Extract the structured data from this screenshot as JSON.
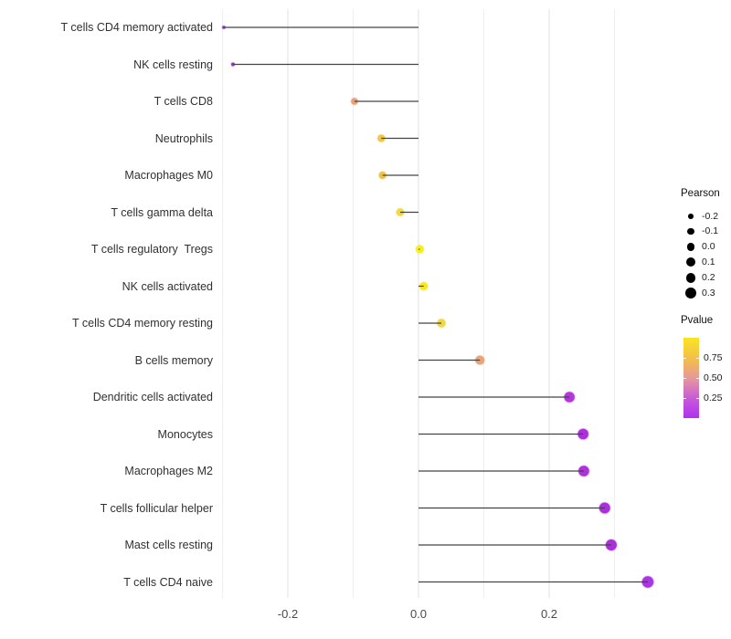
{
  "chart_data": {
    "type": "scatter",
    "subtype": "lollipop",
    "title": "",
    "xlabel": "",
    "ylabel": "",
    "xlim": [
      -0.33,
      0.38
    ],
    "grid": "vertical-only",
    "x_major_ticks": [
      {
        "label": "-0.2",
        "value": -0.2
      },
      {
        "label": "0.0",
        "value": 0.0
      },
      {
        "label": "0.2",
        "value": 0.2
      }
    ],
    "x_minor_gridlines": [
      -0.3,
      -0.1,
      0.1,
      0.3
    ],
    "points": [
      {
        "label": "T cells CD4 memory activated",
        "pearson": -0.298,
        "pvalue_est": 0.1,
        "color": "#9D2ACB"
      },
      {
        "label": "NK cells resting",
        "pearson": -0.284,
        "pvalue_est": 0.12,
        "color": "#A22DD0"
      },
      {
        "label": "T cells CD8",
        "pearson": -0.098,
        "pvalue_est": 0.65,
        "color": "#EBA078"
      },
      {
        "label": "Neutrophils",
        "pearson": -0.057,
        "pvalue_est": 0.8,
        "color": "#F0C746"
      },
      {
        "label": "Macrophages M0",
        "pearson": -0.055,
        "pvalue_est": 0.78,
        "color": "#F0C240"
      },
      {
        "label": "T cells gamma delta",
        "pearson": -0.028,
        "pvalue_est": 0.85,
        "color": "#F2DA3E"
      },
      {
        "label": "T cells regulatory  Tregs",
        "pearson": 0.002,
        "pvalue_est": 0.95,
        "color": "#F7EE1B"
      },
      {
        "label": "NK cells activated",
        "pearson": 0.008,
        "pvalue_est": 0.93,
        "color": "#F7E81E"
      },
      {
        "label": "T cells CD4 memory resting",
        "pearson": 0.035,
        "pvalue_est": 0.82,
        "color": "#F0D843"
      },
      {
        "label": "B cells memory",
        "pearson": 0.094,
        "pvalue_est": 0.65,
        "color": "#EAA477"
      },
      {
        "label": "Dendritic cells activated",
        "pearson": 0.231,
        "pvalue_est": 0.15,
        "color": "#B336DC"
      },
      {
        "label": "Monocytes",
        "pearson": 0.252,
        "pvalue_est": 0.12,
        "color": "#AC30DC"
      },
      {
        "label": "Macrophages M2",
        "pearson": 0.253,
        "pvalue_est": 0.12,
        "color": "#AD31DC"
      },
      {
        "label": "T cells follicular helper",
        "pearson": 0.285,
        "pvalue_est": 0.1,
        "color": "#AC2FDE"
      },
      {
        "label": "Mast cells resting",
        "pearson": 0.295,
        "pvalue_est": 0.1,
        "color": "#AB2EDD"
      },
      {
        "label": "T cells CD4 naive",
        "pearson": 0.351,
        "pvalue_est": 0.08,
        "color": "#A936E0"
      }
    ],
    "legend_size": {
      "title": "Pearson",
      "entries": [
        {
          "label": "-0.2",
          "value": -0.2
        },
        {
          "label": "-0.1",
          "value": -0.1
        },
        {
          "label": "0.0",
          "value": 0.0
        },
        {
          "label": "0.1",
          "value": 0.1
        },
        {
          "label": "0.2",
          "value": 0.2
        },
        {
          "label": "0.3",
          "value": 0.3
        }
      ]
    },
    "legend_color": {
      "title": "Pvalue",
      "tick_labels": [
        "0.75",
        "0.50",
        "0.25"
      ],
      "tick_values": [
        0.75,
        0.5,
        0.25
      ],
      "value_range": [
        0,
        1
      ],
      "gradient": [
        {
          "pos": 0.0,
          "color": "#F9E522"
        },
        {
          "pos": 0.28,
          "color": "#F3BC4E"
        },
        {
          "pos": 0.52,
          "color": "#E495A0"
        },
        {
          "pos": 0.75,
          "color": "#C95BD8"
        },
        {
          "pos": 1.0,
          "color": "#AF30EE"
        }
      ]
    }
  },
  "colors": {
    "stem": "#434343",
    "grid_major": "#E0E0E0",
    "grid_minor": "#EFEFEF",
    "axis_text": "#4A4A4A",
    "label_text": "#303030",
    "background": "#FFFFFF",
    "legend_dot": "#000000"
  }
}
